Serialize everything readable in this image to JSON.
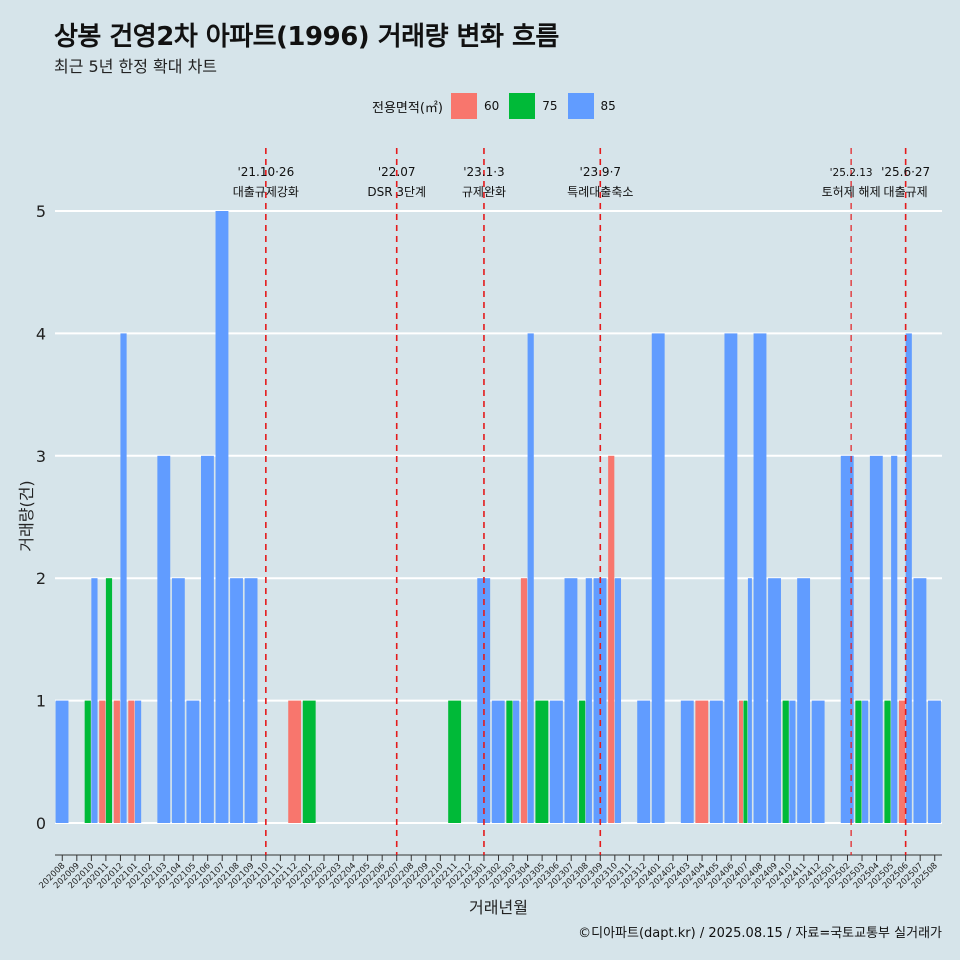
{
  "title": "상봉 건영2차 아파트(1996) 거래량 변화 흐름",
  "subtitle": "최근 5년 한정 확대 차트",
  "caption": "©디아파트(dapt.kr) / 2025.08.15 / 자료=국토교통부 실거래가",
  "legend": {
    "title": "전용면적(㎡)"
  },
  "colors": {
    "60": "#f8766d",
    "75": "#00ba38",
    "85": "#619cff",
    "vline": "#e41a1c",
    "grid": "#ffffff",
    "background": "#d6e4ea"
  },
  "chart_data": {
    "type": "bar",
    "xlabel": "거래년월",
    "ylabel": "거래량(건)",
    "ylim": [
      0,
      5
    ],
    "yticks": [
      0,
      1,
      2,
      3,
      4,
      5
    ],
    "categories": [
      "202008",
      "202009",
      "202010",
      "202011",
      "202012",
      "202101",
      "202102",
      "202103",
      "202104",
      "202105",
      "202106",
      "202107",
      "202108",
      "202109",
      "202110",
      "202111",
      "202112",
      "202201",
      "202202",
      "202203",
      "202204",
      "202205",
      "202206",
      "202207",
      "202208",
      "202209",
      "202210",
      "202211",
      "202212",
      "202301",
      "202302",
      "202303",
      "202304",
      "202305",
      "202306",
      "202307",
      "202308",
      "202309",
      "202310",
      "202311",
      "202312",
      "202401",
      "202402",
      "202403",
      "202404",
      "202405",
      "202406",
      "202407",
      "202408",
      "202409",
      "202410",
      "202411",
      "202412",
      "202501",
      "202502",
      "202503",
      "202504",
      "202505",
      "202506",
      "202507",
      "202508"
    ],
    "series": [
      {
        "name": "60",
        "values": {
          "202011": 1,
          "202012": 1,
          "202101": 1,
          "202112": 1,
          "202304": 2,
          "202310": 3,
          "202404": 1,
          "202407": 1,
          "202506": 1
        }
      },
      {
        "name": "75",
        "values": {
          "202010": 1,
          "202011": 2,
          "202201": 1,
          "202211": 1,
          "202303": 1,
          "202305": 1,
          "202308": 1,
          "202407": 1,
          "202410": 1,
          "202503": 1,
          "202505": 1
        }
      },
      {
        "name": "85",
        "values": {
          "202008": 1,
          "202010": 2,
          "202012": 4,
          "202101": 1,
          "202103": 3,
          "202104": 2,
          "202105": 1,
          "202106": 3,
          "202107": 5,
          "202108": 2,
          "202109": 2,
          "202301": 2,
          "202302": 1,
          "202303": 1,
          "202304": 4,
          "202306": 1,
          "202307": 2,
          "202308": 2,
          "202309": 2,
          "202310": 2,
          "202312": 1,
          "202401": 4,
          "202403": 1,
          "202405": 1,
          "202406": 4,
          "202407": 2,
          "202408": 4,
          "202409": 2,
          "202410": 1,
          "202411": 2,
          "202412": 1,
          "202502": 3,
          "202503": 1,
          "202504": 3,
          "202505": 3,
          "202506": 4,
          "202507": 2,
          "202508": 1
        }
      }
    ],
    "annotations": [
      {
        "x": "202110",
        "date": "'21.10·26",
        "label": "대출규제강화"
      },
      {
        "x": "202207",
        "date": "'22.07",
        "label": "DSR 3단계"
      },
      {
        "x": "202301",
        "date": "'23.1·3",
        "label": "규제완화"
      },
      {
        "x": "202309",
        "date": "'23.9·7",
        "label": "특례대출축소"
      },
      {
        "x": "202502",
        "date": "'25.2.13",
        "label": "토허제 해제"
      },
      {
        "x": "202506",
        "date": "'25.6·27",
        "label": "대출규제"
      }
    ]
  }
}
